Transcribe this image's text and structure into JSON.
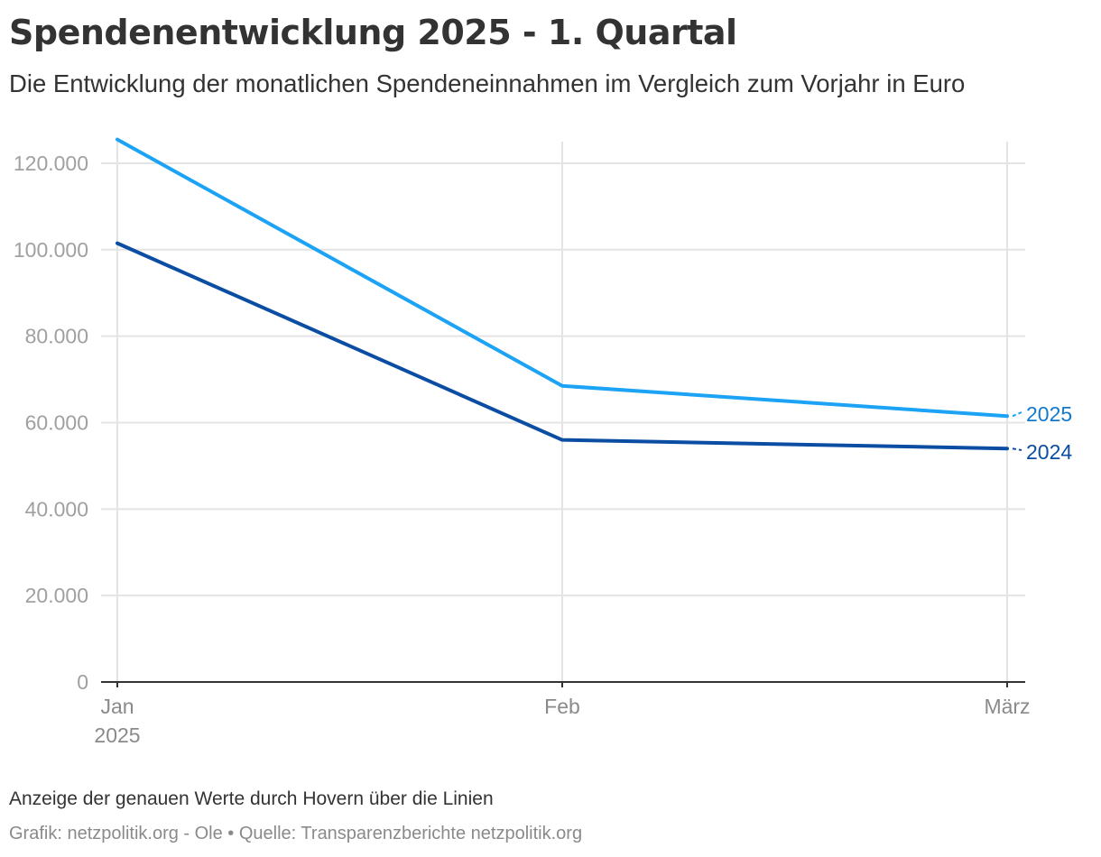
{
  "chart_data": {
    "type": "line",
    "title": "Spendenentwicklung 2025 - 1. Quartal",
    "subtitle": "Die Entwicklung der monatlichen Spendeneinnahmen im Vergleich zum Vorjahr in Euro",
    "categories": [
      "Jan",
      "Feb",
      "März"
    ],
    "x_tick_labels": [
      {
        "label": "Jan",
        "sublabel": "2025"
      },
      {
        "label": "Feb",
        "sublabel": ""
      },
      {
        "label": "März",
        "sublabel": ""
      }
    ],
    "y_ticks": [
      "0",
      "20.000",
      "40.000",
      "60.000",
      "80.000",
      "100.000",
      "120.000"
    ],
    "y_tick_values": [
      0,
      20000,
      40000,
      60000,
      80000,
      100000,
      120000
    ],
    "ylim": [
      0,
      125000
    ],
    "grid": true,
    "legend": "direct labels at line ends (right)",
    "series": [
      {
        "name": "2025",
        "color": "#1ca3f5",
        "label_color": "#1479cc",
        "values": [
          125500,
          68500,
          61500
        ]
      },
      {
        "name": "2024",
        "color": "#0a4da2",
        "label_color": "#0a4da2",
        "values": [
          101500,
          56000,
          54000
        ]
      }
    ],
    "notes": "Anzeige der genauen Werte durch Hovern über die Linien",
    "credit": "Grafik: netzpolitik.org - Ole • Quelle: Transparenzberichte netzpolitik.org"
  }
}
